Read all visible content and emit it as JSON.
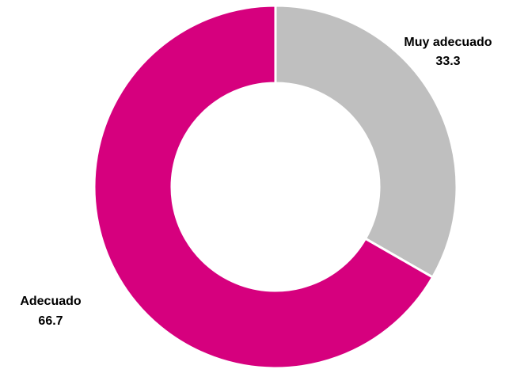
{
  "chart_data": {
    "type": "pie",
    "variant": "donut",
    "title": "",
    "categories": [
      "Muy adecuado",
      "Adecuado"
    ],
    "values": [
      33.3,
      66.7
    ],
    "value_labels": [
      "33.3",
      "66.7"
    ],
    "colors": [
      "#bfbfbf",
      "#d6007e"
    ],
    "start_angle_deg": 0,
    "direction": "clockwise",
    "legend": "none",
    "data_labels": "outside"
  }
}
